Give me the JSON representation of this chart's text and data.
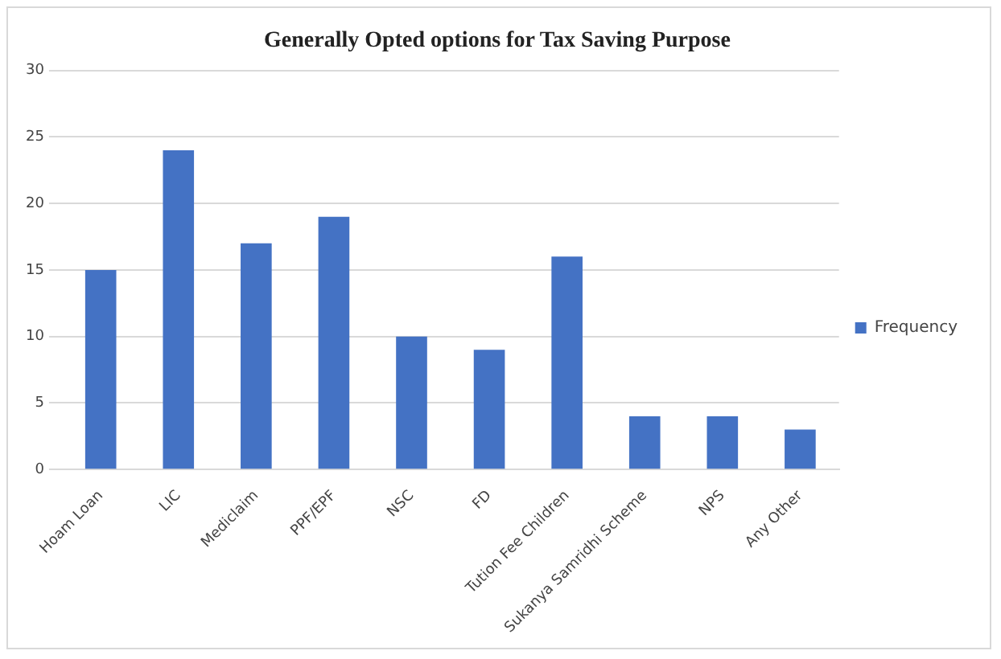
{
  "chart_data": {
    "type": "bar",
    "title": "Generally Opted options for Tax Saving Purpose",
    "categories": [
      "Hoam Loan",
      "LIC",
      "Mediclaim",
      "PPF/EPF",
      "NSC",
      "FD",
      "Tution Fee Children",
      "Sukanya Samridhi Scheme",
      "NPS",
      "Any Other"
    ],
    "series": [
      {
        "name": "Frequency",
        "color": "#4472c4",
        "values": [
          15,
          24,
          17,
          19,
          10,
          9,
          16,
          4,
          4,
          3
        ]
      }
    ],
    "ylim": [
      0,
      30
    ],
    "yticks": [
      0,
      5,
      10,
      15,
      20,
      25,
      30
    ],
    "grid": "y",
    "legend": "right"
  }
}
